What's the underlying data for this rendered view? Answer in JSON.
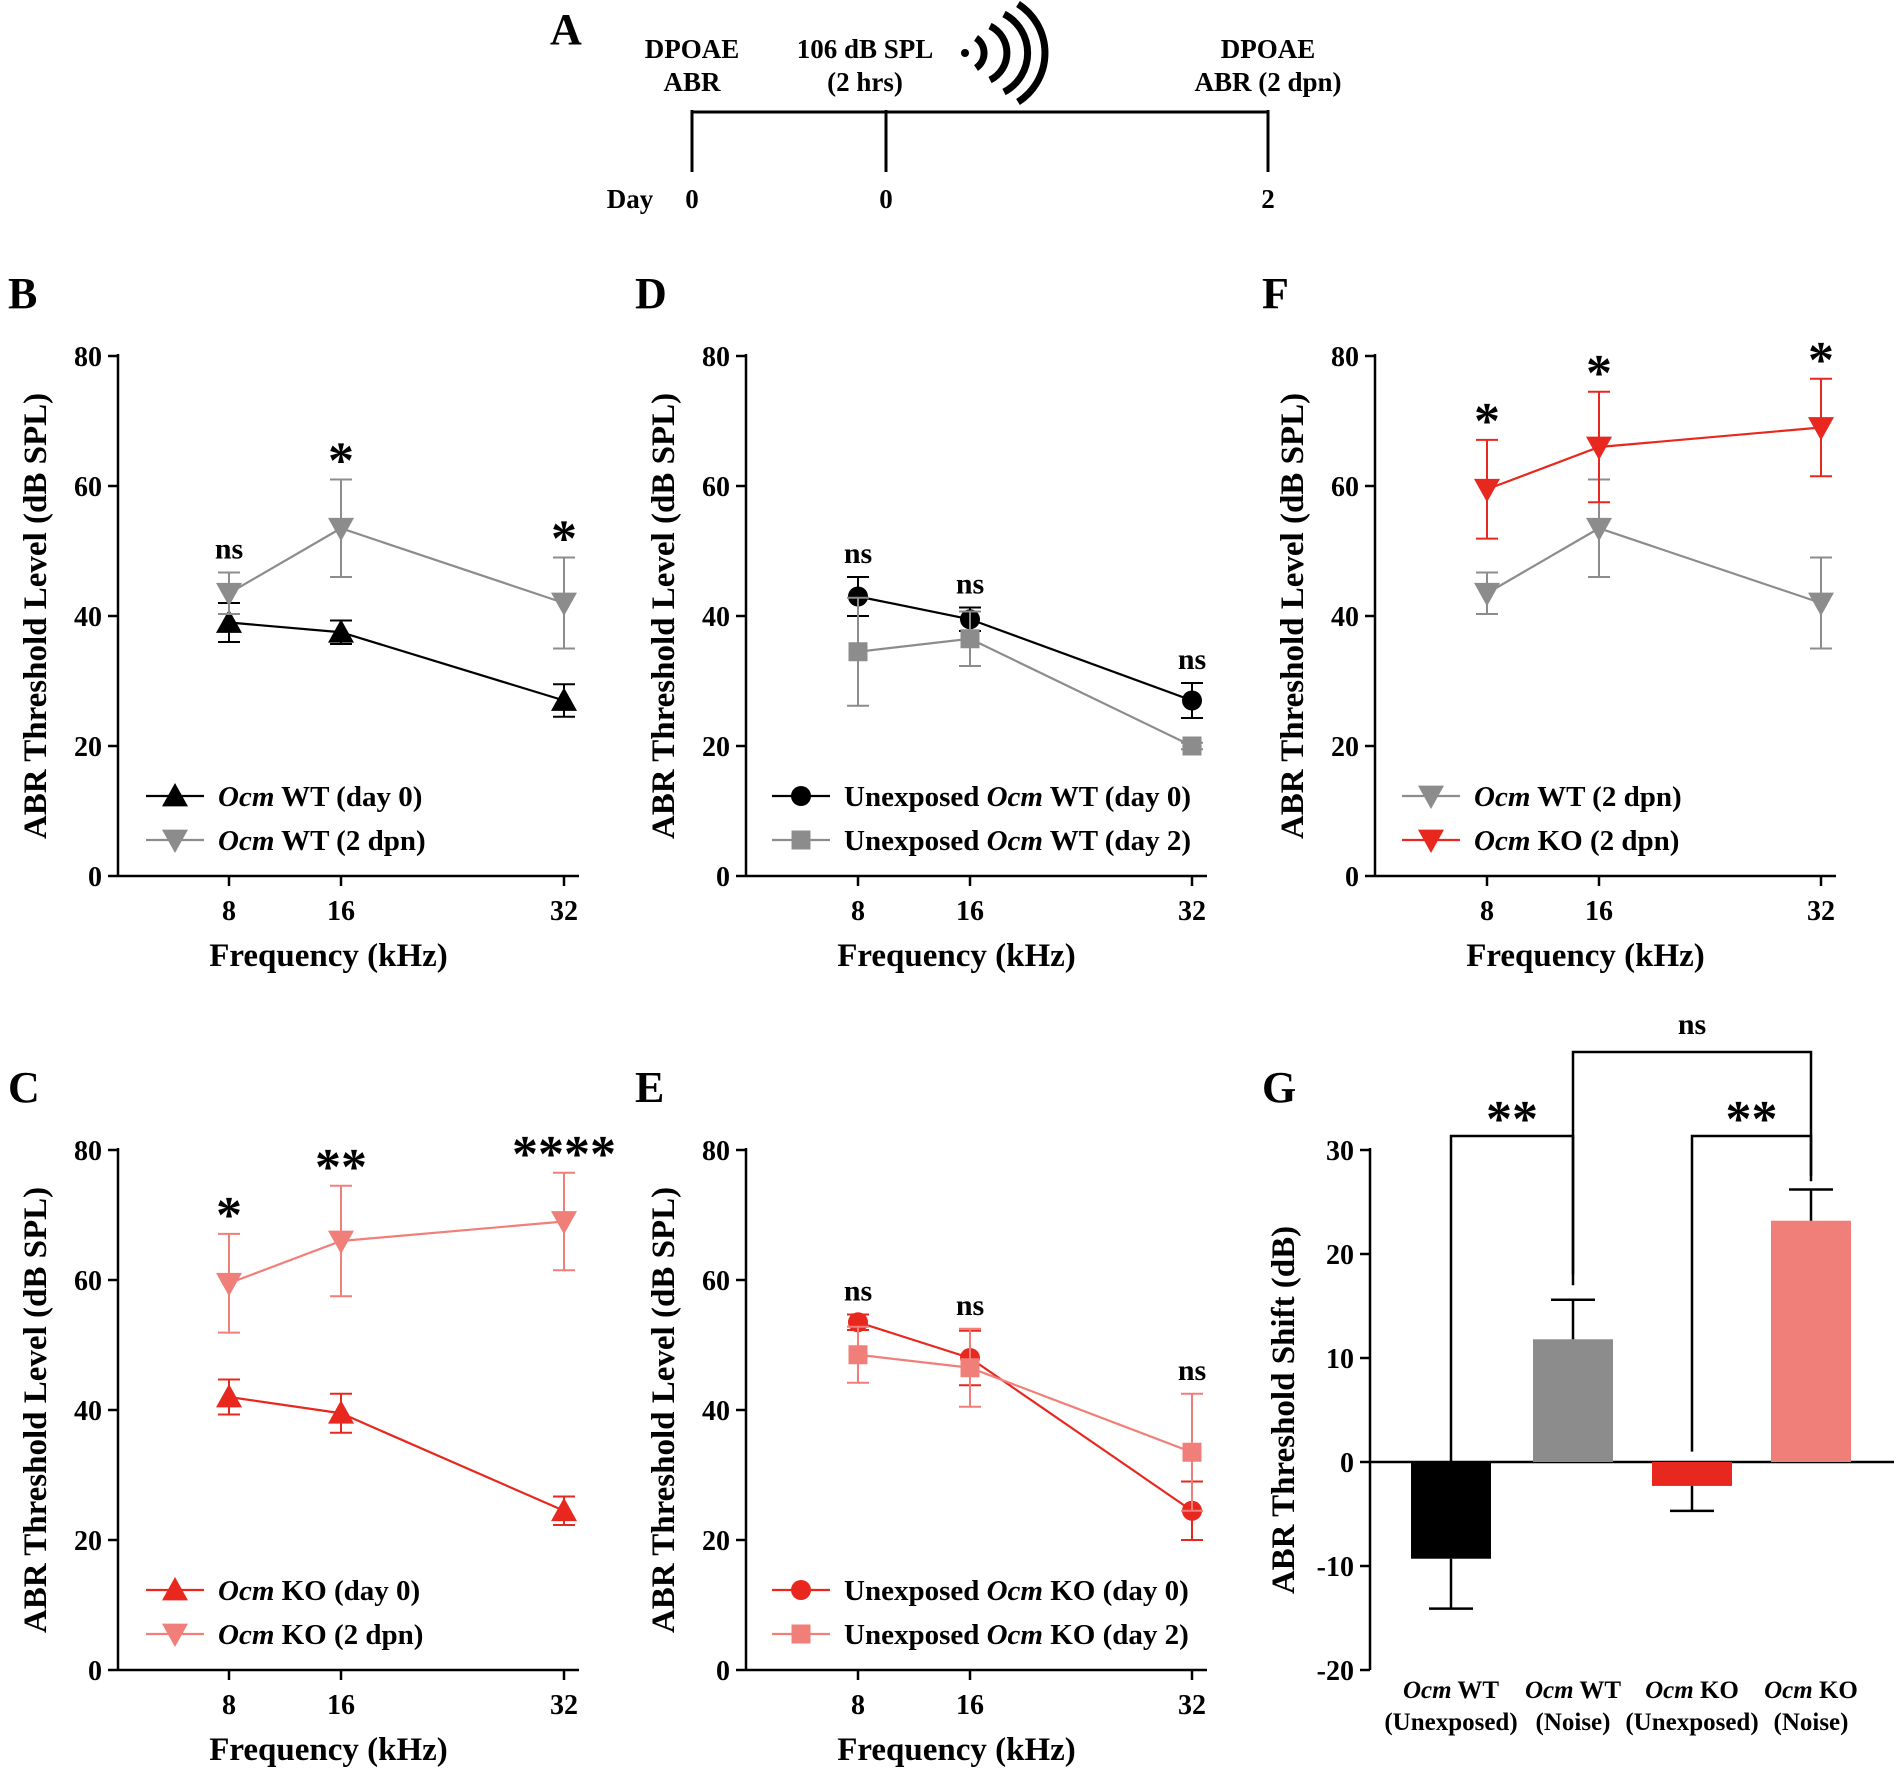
{
  "timeline": {
    "panel": "A",
    "day_label": "Day",
    "events": [
      {
        "line1": "DPOAE",
        "line2": "ABR",
        "day": "0"
      },
      {
        "line1": "106 dB SPL",
        "line2": "(2 hrs)",
        "day": "0"
      },
      {
        "line1": "DPOAE",
        "line2": "ABR (2 dpn)",
        "day": "2"
      }
    ],
    "icon": "sound-wave-icon"
  },
  "colors": {
    "black": "#000000",
    "gray": "#8c8c8c",
    "red": "#e8281e",
    "pink": "#f07f7a"
  },
  "chart_data": [
    {
      "panel": "B",
      "type": "line",
      "xlabel": "Frequency (kHz)",
      "ylabel": "ABR Threshold Level (dB SPL)",
      "ylim": [
        0,
        80
      ],
      "yticks": [
        "0",
        "20",
        "40",
        "60",
        "80"
      ],
      "x": [
        8,
        16,
        32
      ],
      "xticks": [
        "8",
        "16",
        "32"
      ],
      "series": [
        {
          "name_em": "Ocm",
          "name_rest": " WT (day 0)",
          "color": "#000000",
          "marker": "triangle-up",
          "values": [
            39,
            37.5,
            27
          ],
          "err": [
            3,
            1.8,
            2.5
          ]
        },
        {
          "name_em": "Ocm",
          "name_rest": " WT (2 dpn)",
          "color": "#8c8c8c",
          "marker": "triangle-down",
          "values": [
            43.5,
            53.5,
            42
          ],
          "err": [
            3.2,
            7.5,
            7
          ]
        }
      ],
      "significance": [
        "ns",
        "*",
        "*"
      ]
    },
    {
      "panel": "C",
      "type": "line",
      "xlabel": "Frequency (kHz)",
      "ylabel": "ABR Threshold Level (dB SPL)",
      "ylim": [
        0,
        80
      ],
      "yticks": [
        "0",
        "20",
        "40",
        "60",
        "80"
      ],
      "x": [
        8,
        16,
        32
      ],
      "xticks": [
        "8",
        "16",
        "32"
      ],
      "series": [
        {
          "name_em": "Ocm",
          "name_rest": " KO (day 0)",
          "color": "#e8281e",
          "marker": "triangle-up",
          "values": [
            42,
            39.5,
            24.5
          ],
          "err": [
            2.7,
            3,
            2.2
          ]
        },
        {
          "name_em": "Ocm",
          "name_rest": " KO (2 dpn)",
          "color": "#f07f7a",
          "marker": "triangle-down",
          "values": [
            59.5,
            66,
            69
          ],
          "err": [
            7.6,
            8.5,
            7.5
          ]
        }
      ],
      "significance": [
        "*",
        "**",
        "****"
      ]
    },
    {
      "panel": "D",
      "type": "line",
      "xlabel": "Frequency (kHz)",
      "ylabel": "ABR Threshold Level (dB SPL)",
      "ylim": [
        0,
        80
      ],
      "yticks": [
        "0",
        "20",
        "40",
        "60",
        "80"
      ],
      "x": [
        8,
        16,
        32
      ],
      "xticks": [
        "8",
        "16",
        "32"
      ],
      "series": [
        {
          "name_pre": "Unexposed ",
          "name_em": "Ocm",
          "name_rest": " WT (day 0)",
          "color": "#000000",
          "marker": "circle",
          "values": [
            43,
            39.5,
            27
          ],
          "err": [
            3,
            1.8,
            2.7
          ]
        },
        {
          "name_pre": "Unexposed ",
          "name_em": "Ocm",
          "name_rest": " WT (day 2)",
          "color": "#8c8c8c",
          "marker": "square",
          "values": [
            34.5,
            36.5,
            20
          ],
          "err": [
            8.3,
            4.2,
            0.5
          ]
        }
      ],
      "significance": [
        "ns",
        "ns",
        "ns"
      ]
    },
    {
      "panel": "E",
      "type": "line",
      "xlabel": "Frequency (kHz)",
      "ylabel": "ABR Threshold Level (dB SPL)",
      "ylim": [
        0,
        80
      ],
      "yticks": [
        "0",
        "20",
        "40",
        "60",
        "80"
      ],
      "x": [
        8,
        16,
        32
      ],
      "xticks": [
        "8",
        "16",
        "32"
      ],
      "series": [
        {
          "name_pre": "Unexposed ",
          "name_em": "Ocm",
          "name_rest": " KO (day 0)",
          "color": "#e8281e",
          "marker": "circle",
          "values": [
            53.5,
            48,
            24.5
          ],
          "err": [
            1.2,
            4.2,
            4.5
          ]
        },
        {
          "name_pre": "Unexposed ",
          "name_em": "Ocm",
          "name_rest": " KO (day 2)",
          "color": "#f07f7a",
          "marker": "square",
          "values": [
            48.5,
            46.5,
            33.5
          ],
          "err": [
            4.3,
            6,
            9
          ]
        }
      ],
      "significance": [
        "ns",
        "ns",
        "ns"
      ]
    },
    {
      "panel": "F",
      "type": "line",
      "xlabel": "Frequency (kHz)",
      "ylabel": "ABR Threshold Level (dB SPL)",
      "ylim": [
        0,
        80
      ],
      "yticks": [
        "0",
        "20",
        "40",
        "60",
        "80"
      ],
      "x": [
        8,
        16,
        32
      ],
      "xticks": [
        "8",
        "16",
        "32"
      ],
      "series": [
        {
          "name_em": "Ocm",
          "name_rest": " WT (2 dpn)",
          "color": "#8c8c8c",
          "marker": "triangle-down",
          "values": [
            43.5,
            53.5,
            42
          ],
          "err": [
            3.2,
            7.5,
            7
          ]
        },
        {
          "name_em": "Ocm",
          "name_rest": " KO (2 dpn)",
          "color": "#e8281e",
          "marker": "triangle-down",
          "values": [
            59.5,
            66,
            69
          ],
          "err": [
            7.6,
            8.5,
            7.5
          ]
        }
      ],
      "significance": [
        "*",
        "*",
        "*"
      ]
    },
    {
      "panel": "G",
      "type": "bar",
      "ylabel": "ABR Threshold Shift (dB)",
      "ylim": [
        -20,
        30
      ],
      "yticks": [
        "-20",
        "-10",
        "0",
        "10",
        "20",
        "30"
      ],
      "categories": [
        {
          "em": "Ocm",
          "rest": " WT",
          "sub": "(Unexposed)"
        },
        {
          "em": "Ocm",
          "rest": " WT",
          "sub": "(Noise)"
        },
        {
          "em": "Ocm",
          "rest": " KO",
          "sub": "(Unexposed)"
        },
        {
          "em": "Ocm",
          "rest": " KO",
          "sub": "(Noise)"
        }
      ],
      "values": [
        -9.3,
        11.8,
        -2.3,
        23.2
      ],
      "err": [
        4.8,
        3.8,
        2.4,
        3
      ],
      "colors": [
        "#000000",
        "#8c8c8c",
        "#e8281e",
        "#f07f7a"
      ],
      "comparisons": [
        {
          "a": 0,
          "b": 1,
          "label": "**"
        },
        {
          "a": 2,
          "b": 3,
          "label": "**"
        },
        {
          "a": 1,
          "b": 3,
          "label": "ns"
        }
      ]
    }
  ]
}
